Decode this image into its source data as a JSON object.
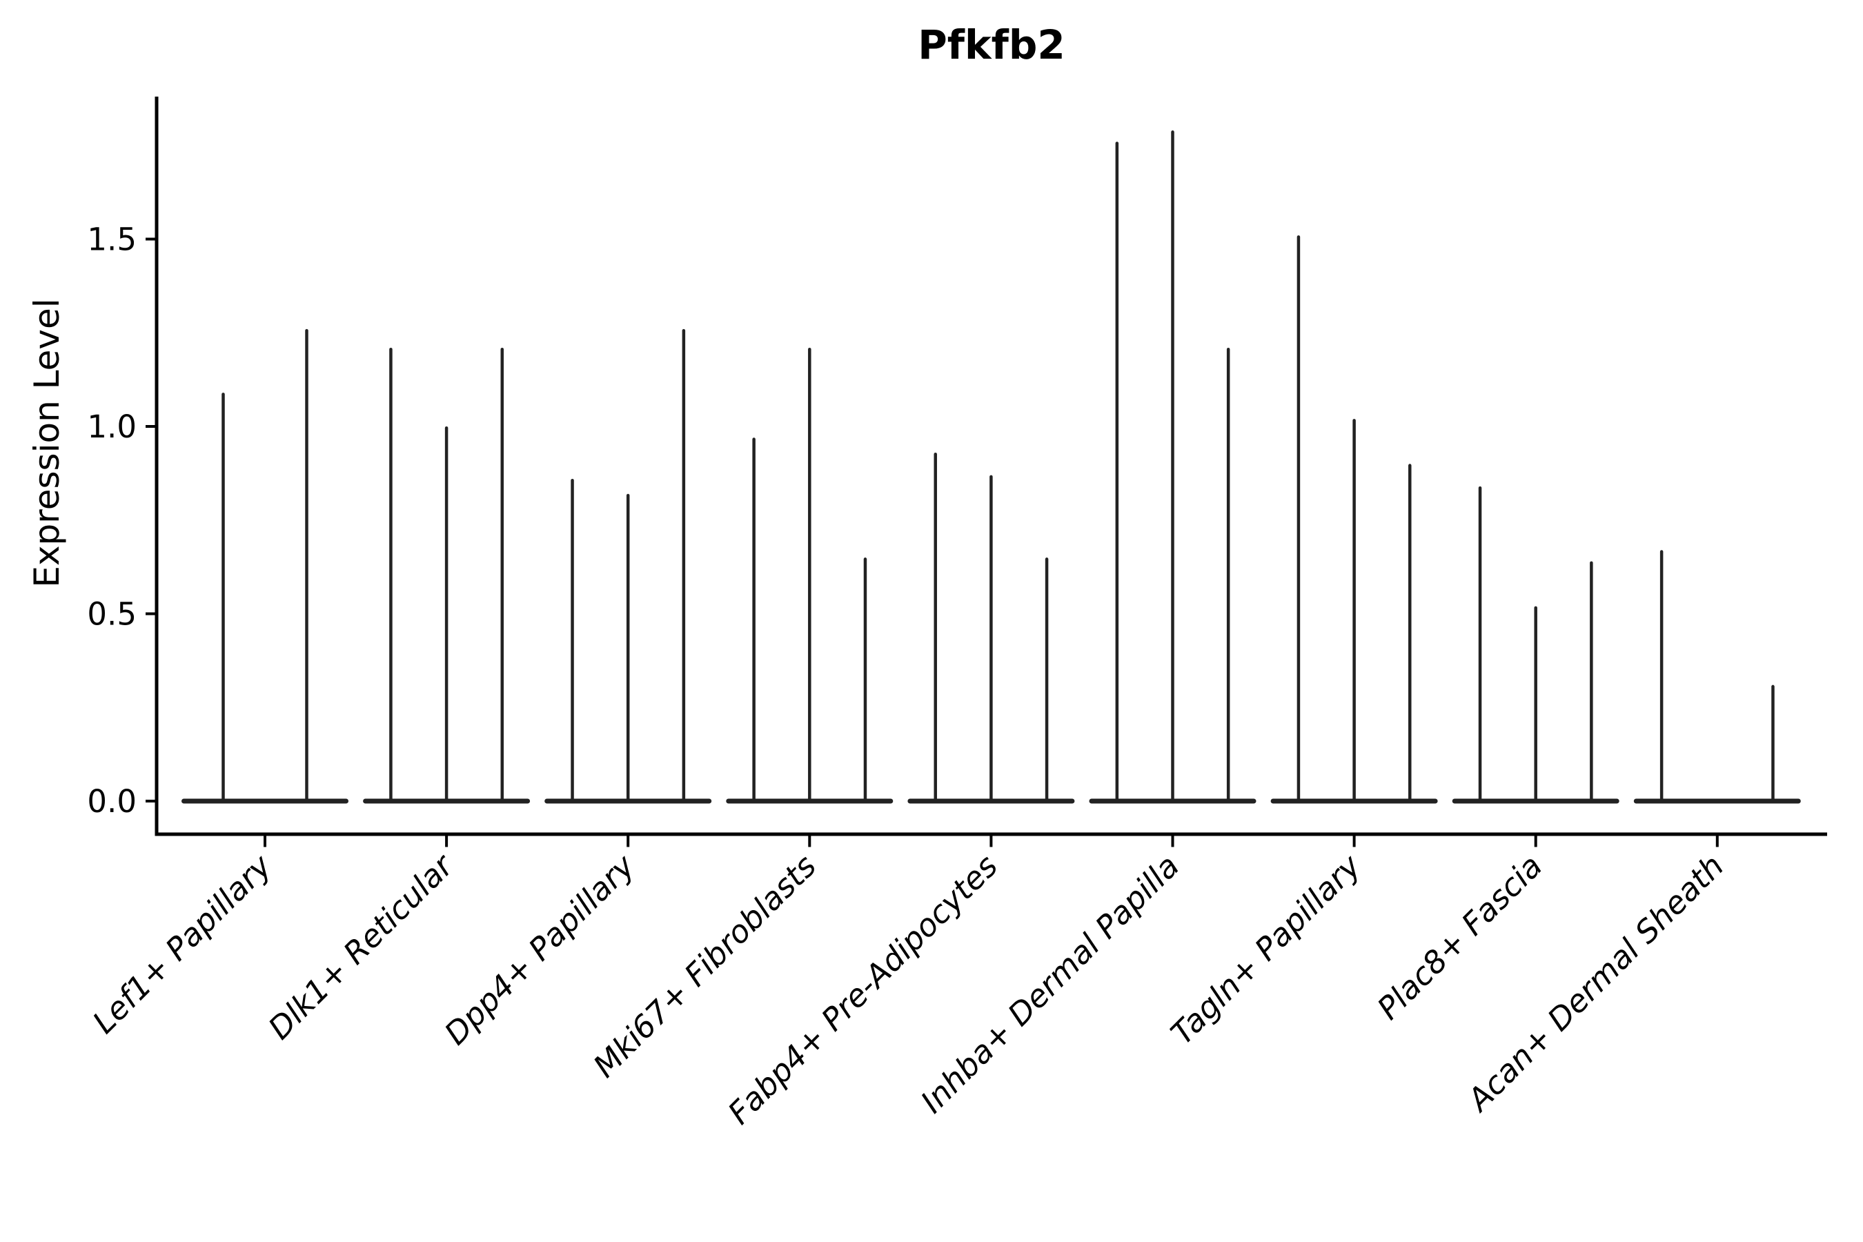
{
  "page": {
    "background": "#ffffff"
  },
  "chart_data": {
    "type": "violin",
    "title": "Pfkfb2",
    "ylabel": "Expression Level",
    "xlabel": "",
    "ytick_labels": [
      "0.0",
      "0.5",
      "1.0",
      "1.5"
    ],
    "ylim": [
      -0.09,
      1.88
    ],
    "grid": false,
    "legend": "none",
    "x_tick_rotation_deg": 45,
    "categories": [
      "Lef1+ Papillary",
      "Dlk1+ Reticular",
      "Dpp4+ Papillary",
      "Mki67+ Fibroblasts",
      "Fabp4+ Pre-Adipocytes",
      "Inhba+ Dermal Papilla",
      "Tagln+ Papillary",
      "Plac8+ Fascia",
      "Acan+ Dermal Sheath"
    ],
    "violins": [
      {
        "category": "Lef1+ Papillary",
        "spike_maxima": [
          1.09,
          1.26
        ]
      },
      {
        "category": "Dlk1+ Reticular",
        "spike_maxima": [
          1.21,
          1.0,
          1.21
        ]
      },
      {
        "category": "Dpp4+ Papillary",
        "spike_maxima": [
          0.86,
          0.82,
          1.26
        ]
      },
      {
        "category": "Mki67+ Fibroblasts",
        "spike_maxima": [
          0.97,
          1.21,
          0.65
        ]
      },
      {
        "category": "Fabp4+ Pre-Adipocytes",
        "spike_maxima": [
          0.93,
          0.87,
          0.65
        ]
      },
      {
        "category": "Inhba+ Dermal Papilla",
        "spike_maxima": [
          1.76,
          1.79,
          1.21
        ]
      },
      {
        "category": "Tagln+ Papillary",
        "spike_maxima": [
          1.51,
          1.02,
          0.9
        ]
      },
      {
        "category": "Plac8+ Fascia",
        "spike_maxima": [
          0.84,
          0.52,
          0.64
        ]
      },
      {
        "category": "Acan+ Dermal Sheath",
        "spike_maxima": [
          0.67,
          0,
          0.31
        ]
      }
    ],
    "colors": {
      "violin_stroke": "#222222",
      "axis": "#000000",
      "text": "#000000"
    }
  }
}
